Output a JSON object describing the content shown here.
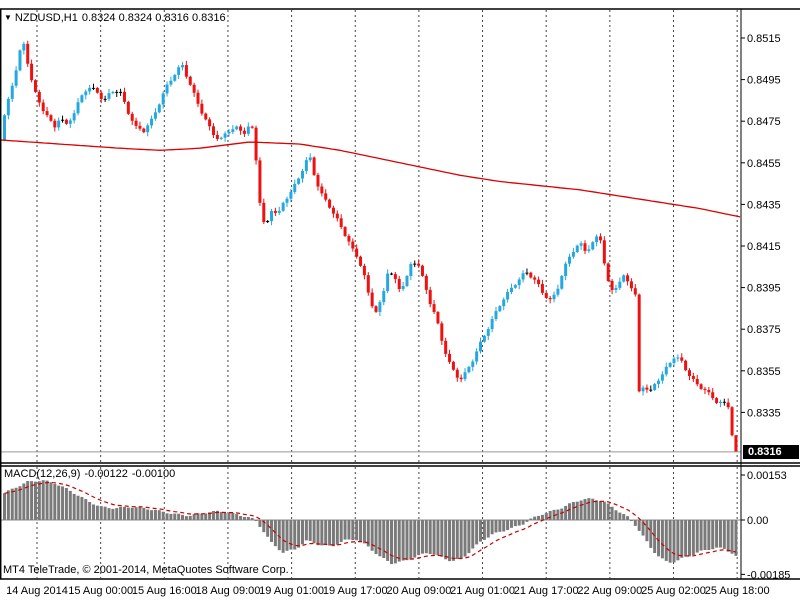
{
  "header": {
    "symbol_timeframe": "NZDUSD,H1",
    "ohlc_text": "0.8324 0.8324 0.8316 0.8316"
  },
  "footer": {
    "copyright": "MT4 TeleTrade, © 2001-2014, MetaQuotes Software Corp."
  },
  "chart_data": {
    "type": "candlestick",
    "title": "NZDUSD,H1",
    "symbol": "NZDUSD",
    "timeframe": "H1",
    "ohlc": {
      "open": "0.8324",
      "high": "0.8324",
      "low": "0.8316",
      "close": "0.8316"
    },
    "current_price": 0.8316,
    "current_price_label": "0.8316",
    "price_axis_ticks": [
      "0.8515",
      "0.8495",
      "0.8475",
      "0.8455",
      "0.8435",
      "0.8415",
      "0.8395",
      "0.8375",
      "0.8355",
      "0.8335"
    ],
    "price_axis_range": [
      0.8311,
      0.8529
    ],
    "time_axis_labels": [
      "14 Aug 2014",
      "15 Aug 00:00",
      "15 Aug 16:00",
      "18 Aug 09:00",
      "19 Aug 01:00",
      "19 Aug 17:00",
      "20 Aug 09:00",
      "21 Aug 01:00",
      "21 Aug 17:00",
      "22 Aug 09:00",
      "25 Aug 02:00",
      "25 Aug 18:00"
    ],
    "grid": "vertical-dashed",
    "num_candles": 190,
    "colors": {
      "bull_candle": "#25A8E0",
      "bear_candle": "#EE1111",
      "doji": "#000000",
      "ma_line": "#DD0000",
      "macd_histogram": "#7A7A7A",
      "macd_signal": "#CC0000",
      "current_price_line": "#999999",
      "price_tag_bg": "#000000",
      "price_tag_text": "#FFFFFF",
      "grid_line": "#444444",
      "border": "#000000",
      "background": "#FFFFFF"
    },
    "close_path_keypoints": [
      [
        0,
        0.8468
      ],
      [
        4,
        0.8477
      ],
      [
        8,
        0.8484
      ],
      [
        14,
        0.8495
      ],
      [
        20,
        0.8508
      ],
      [
        24,
        0.8511
      ],
      [
        28,
        0.8502
      ],
      [
        34,
        0.849
      ],
      [
        40,
        0.8483
      ],
      [
        48,
        0.8478
      ],
      [
        54,
        0.8472
      ],
      [
        60,
        0.8478
      ],
      [
        66,
        0.8473
      ],
      [
        72,
        0.8477
      ],
      [
        80,
        0.8485
      ],
      [
        88,
        0.8491
      ],
      [
        96,
        0.8489
      ],
      [
        104,
        0.8485
      ],
      [
        112,
        0.849
      ],
      [
        120,
        0.849
      ],
      [
        128,
        0.848
      ],
      [
        136,
        0.8472
      ],
      [
        144,
        0.847
      ],
      [
        152,
        0.8475
      ],
      [
        160,
        0.8484
      ],
      [
        168,
        0.8493
      ],
      [
        176,
        0.8499
      ],
      [
        182,
        0.8503
      ],
      [
        188,
        0.8496
      ],
      [
        196,
        0.8486
      ],
      [
        204,
        0.8477
      ],
      [
        212,
        0.8469
      ],
      [
        220,
        0.8465
      ],
      [
        228,
        0.847
      ],
      [
        236,
        0.8472
      ],
      [
        244,
        0.847
      ],
      [
        250,
        0.8474
      ],
      [
        254,
        0.847
      ],
      [
        258,
        0.8445
      ],
      [
        262,
        0.8428
      ],
      [
        266,
        0.8424
      ],
      [
        272,
        0.8433
      ],
      [
        278,
        0.8429
      ],
      [
        284,
        0.8436
      ],
      [
        292,
        0.8441
      ],
      [
        300,
        0.8449
      ],
      [
        306,
        0.8456
      ],
      [
        310,
        0.8458
      ],
      [
        316,
        0.8447
      ],
      [
        322,
        0.844
      ],
      [
        328,
        0.8436
      ],
      [
        334,
        0.843
      ],
      [
        340,
        0.8425
      ],
      [
        346,
        0.8419
      ],
      [
        352,
        0.8413
      ],
      [
        358,
        0.8409
      ],
      [
        364,
        0.8401
      ],
      [
        370,
        0.8389
      ],
      [
        376,
        0.8384
      ],
      [
        382,
        0.839
      ],
      [
        388,
        0.8404
      ],
      [
        394,
        0.84
      ],
      [
        400,
        0.8394
      ],
      [
        406,
        0.8398
      ],
      [
        412,
        0.8407
      ],
      [
        418,
        0.8406
      ],
      [
        424,
        0.8397
      ],
      [
        430,
        0.8388
      ],
      [
        436,
        0.8381
      ],
      [
        442,
        0.837
      ],
      [
        448,
        0.8361
      ],
      [
        454,
        0.8355
      ],
      [
        460,
        0.8351
      ],
      [
        466,
        0.8354
      ],
      [
        472,
        0.8359
      ],
      [
        478,
        0.8365
      ],
      [
        484,
        0.8371
      ],
      [
        490,
        0.8377
      ],
      [
        496,
        0.8383
      ],
      [
        502,
        0.8389
      ],
      [
        508,
        0.8393
      ],
      [
        514,
        0.8397
      ],
      [
        520,
        0.84
      ],
      [
        526,
        0.8403
      ],
      [
        532,
        0.84
      ],
      [
        538,
        0.8396
      ],
      [
        544,
        0.8391
      ],
      [
        550,
        0.8388
      ],
      [
        556,
        0.8392
      ],
      [
        562,
        0.8401
      ],
      [
        568,
        0.8409
      ],
      [
        574,
        0.8414
      ],
      [
        580,
        0.8417
      ],
      [
        586,
        0.8413
      ],
      [
        592,
        0.8416
      ],
      [
        598,
        0.842
      ],
      [
        602,
        0.8417
      ],
      [
        606,
        0.8399
      ],
      [
        612,
        0.8393
      ],
      [
        618,
        0.8396
      ],
      [
        624,
        0.84
      ],
      [
        630,
        0.8397
      ],
      [
        635,
        0.8392
      ],
      [
        636.5,
        0.839
      ],
      [
        639,
        0.8345
      ],
      [
        644,
        0.8349
      ],
      [
        650,
        0.8345
      ],
      [
        656,
        0.835
      ],
      [
        662,
        0.8353
      ],
      [
        668,
        0.8357
      ],
      [
        674,
        0.8361
      ],
      [
        680,
        0.836
      ],
      [
        686,
        0.8355
      ],
      [
        692,
        0.8351
      ],
      [
        698,
        0.8348
      ],
      [
        704,
        0.8347
      ],
      [
        710,
        0.8344
      ],
      [
        716,
        0.8341
      ],
      [
        722,
        0.834
      ],
      [
        728,
        0.8338
      ],
      [
        732,
        0.8336
      ],
      [
        736,
        0.8324
      ],
      [
        740,
        0.8316
      ]
    ],
    "ma_keypoints": [
      [
        0,
        0.8466
      ],
      [
        60,
        0.8464
      ],
      [
        120,
        0.8462
      ],
      [
        160,
        0.8461
      ],
      [
        200,
        0.8462
      ],
      [
        250,
        0.8465
      ],
      [
        300,
        0.8464
      ],
      [
        340,
        0.8461
      ],
      [
        380,
        0.8457
      ],
      [
        420,
        0.8453
      ],
      [
        460,
        0.8449
      ],
      [
        500,
        0.8446
      ],
      [
        540,
        0.8444
      ],
      [
        580,
        0.8442
      ],
      [
        620,
        0.8439
      ],
      [
        660,
        0.8436
      ],
      [
        700,
        0.8433
      ],
      [
        740,
        0.8429
      ]
    ],
    "indicator": {
      "label": "MACD(12,26,9)",
      "main_value": "-0.00122",
      "signal_value": "-0.00100",
      "axis_ticks": [
        "0.00153",
        "0.00",
        "-0.00185"
      ],
      "axis_tick_values": [
        0.00153,
        0,
        -0.00185
      ],
      "histogram_keypoints": [
        [
          4,
          0.0009
        ],
        [
          15,
          0.0011
        ],
        [
          28,
          0.0013
        ],
        [
          42,
          0.00135
        ],
        [
          55,
          0.00125
        ],
        [
          70,
          0.001
        ],
        [
          85,
          0.0007
        ],
        [
          100,
          0.00045
        ],
        [
          115,
          0.0004
        ],
        [
          130,
          0.00045
        ],
        [
          145,
          0.0004
        ],
        [
          160,
          0.0003
        ],
        [
          175,
          0.0002
        ],
        [
          190,
          0.00015
        ],
        [
          205,
          0.00025
        ],
        [
          220,
          0.0003
        ],
        [
          235,
          0.0002
        ],
        [
          248,
          0.0001
        ],
        [
          255,
          0.0
        ],
        [
          262,
          -0.0003
        ],
        [
          272,
          -0.0008
        ],
        [
          283,
          -0.0011
        ],
        [
          295,
          -0.001
        ],
        [
          307,
          -0.0007
        ],
        [
          320,
          -0.00085
        ],
        [
          332,
          -0.0009
        ],
        [
          344,
          -0.0007
        ],
        [
          356,
          -0.00065
        ],
        [
          368,
          -0.0009
        ],
        [
          380,
          -0.00125
        ],
        [
          392,
          -0.00148
        ],
        [
          404,
          -0.0014
        ],
        [
          416,
          -0.00125
        ],
        [
          428,
          -0.0011
        ],
        [
          440,
          -0.00125
        ],
        [
          452,
          -0.0014
        ],
        [
          462,
          -0.00132
        ],
        [
          472,
          -0.001
        ],
        [
          482,
          -0.0007
        ],
        [
          492,
          -0.0005
        ],
        [
          502,
          -0.00038
        ],
        [
          512,
          -0.00028
        ],
        [
          522,
          -0.00015
        ],
        [
          532,
          5e-05
        ],
        [
          542,
          0.0002
        ],
        [
          552,
          0.0003
        ],
        [
          562,
          0.00042
        ],
        [
          572,
          0.00058
        ],
        [
          582,
          0.0007
        ],
        [
          592,
          0.00072
        ],
        [
          602,
          0.00066
        ],
        [
          612,
          0.00045
        ],
        [
          622,
          0.00022
        ],
        [
          630,
          5e-05
        ],
        [
          636,
          -0.0002
        ],
        [
          644,
          -0.0006
        ],
        [
          652,
          -0.001
        ],
        [
          660,
          -0.00128
        ],
        [
          668,
          -0.00145
        ],
        [
          676,
          -0.0014
        ],
        [
          684,
          -0.00128
        ],
        [
          692,
          -0.00118
        ],
        [
          700,
          -0.00108
        ],
        [
          708,
          -0.001
        ],
        [
          716,
          -0.00095
        ],
        [
          724,
          -0.00098
        ],
        [
          730,
          -0.00108
        ],
        [
          736,
          -0.00122
        ],
        [
          740,
          -0.00122
        ]
      ]
    }
  }
}
